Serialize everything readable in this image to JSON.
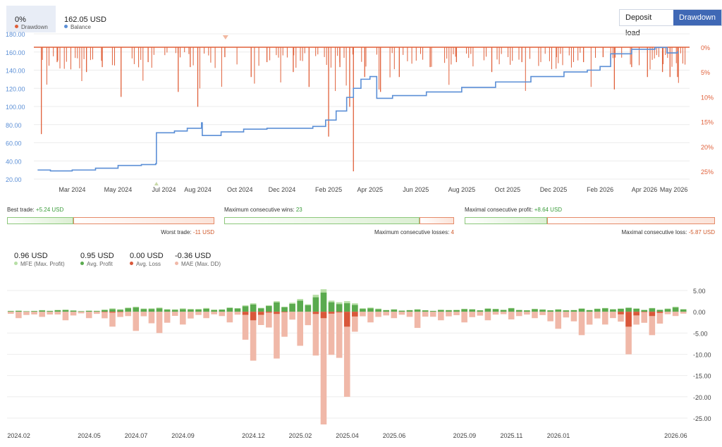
{
  "legend": {
    "drawdown_value": "0%",
    "drawdown_label": "Drawdown",
    "balance_value": "162.05 USD",
    "balance_label": "Balance",
    "colors": {
      "drawdown": "#e0603a",
      "balance": "#5b8fd6"
    }
  },
  "toggle": {
    "deposit_load": "Deposit load",
    "drawdown": "Drawdown",
    "active": "drawdown"
  },
  "stats": {
    "best_trade_label": "Best trade:",
    "best_trade_value": "+5.24 USD",
    "worst_trade_label": "Worst trade:",
    "worst_trade_value": "-11 USD",
    "max_cons_wins_label": "Maximum consecutive wins:",
    "max_cons_wins_value": "23",
    "max_cons_losses_label": "Maximum consecutive losses:",
    "max_cons_losses_value": "4",
    "max_cons_profit_label": "Maximal consecutive profit:",
    "max_cons_profit_value": "+8.64 USD",
    "max_cons_loss_label": "Maximal consecutive loss:",
    "max_cons_loss_value": "-5.87 USD",
    "bar_fractions": [
      0.32,
      0.85,
      0.33
    ]
  },
  "legend2": {
    "mfe_value": "0.96 USD",
    "mfe_label": "MFE (Max. Profit)",
    "avg_profit_value": "0.95 USD",
    "avg_profit_label": "Avg. Profit",
    "avg_loss_value": "0.00 USD",
    "avg_loss_label": "Avg. Loss",
    "mae_value": "-0.36 USD",
    "mae_label": "MAE (Max. DD)",
    "colors": {
      "mfe": "#b7dfa6",
      "profit": "#5aaa4e",
      "loss": "#d9573a",
      "mae": "#f0b8a8"
    }
  },
  "chart_data": [
    {
      "type": "line",
      "x_tick_labels": [
        "Mar 2024",
        "May 2024",
        "Jul 2024",
        "Aug 2024",
        "Oct 2024",
        "Dec 2024",
        "Feb 2025",
        "Apr 2025",
        "Jun 2025",
        "Aug 2025",
        "Oct 2025",
        "Dec 2025",
        "Feb 2026",
        "Apr 2026",
        "May 2026"
      ],
      "y_left_ticks": [
        "180.00",
        "160.00",
        "140.00",
        "120.00",
        "100.00",
        "80.00",
        "60.00",
        "40.00",
        "20.00"
      ],
      "y_left_range": [
        20,
        180
      ],
      "y_right_ticks": [
        "0%",
        "5%",
        "10%",
        "15%",
        "20%",
        "25%"
      ],
      "y_right_range": [
        0,
        27
      ],
      "series": [
        {
          "name": "Balance",
          "x": [
            "2024-01-15",
            "2024-02-01",
            "2024-03-01",
            "2024-04-01",
            "2024-05-01",
            "2024-06-01",
            "2024-06-20",
            "2024-06-21",
            "2024-07-15",
            "2024-08-01",
            "2024-08-20",
            "2024-08-21",
            "2024-09-15",
            "2024-10-15",
            "2024-11-15",
            "2024-12-15",
            "2025-01-15",
            "2025-02-01",
            "2025-02-15",
            "2025-03-01",
            "2025-03-10",
            "2025-03-20",
            "2025-04-01",
            "2025-04-10",
            "2025-05-01",
            "2025-06-15",
            "2025-08-01",
            "2025-09-15",
            "2025-11-01",
            "2025-12-15",
            "2026-01-15",
            "2026-02-01",
            "2026-02-15",
            "2026-03-15",
            "2026-04-15",
            "2026-05-01",
            "2026-05-15"
          ],
          "y": [
            30,
            29,
            30,
            32,
            35,
            36,
            37,
            71,
            73,
            76,
            82,
            68,
            72,
            75,
            76,
            76,
            78,
            85,
            95,
            110,
            120,
            130,
            133,
            109,
            112,
            116,
            121,
            127,
            133,
            138,
            140,
            144,
            158,
            163,
            165,
            159,
            161
          ]
        },
        {
          "name": "Drawdown",
          "unit": "%",
          "x": [
            "2024-01-20",
            "2024-02-10",
            "2024-03-20",
            "2024-04-10",
            "2024-05-05",
            "2024-06-10",
            "2024-07-20",
            "2024-08-05",
            "2024-08-15",
            "2024-09-20",
            "2024-10-25",
            "2024-11-15",
            "2024-12-20",
            "2025-01-10",
            "2025-02-05",
            "2025-02-20",
            "2025-03-05",
            "2025-03-10",
            "2025-03-25",
            "2025-04-15",
            "2025-05-10",
            "2025-06-20",
            "2025-07-25",
            "2025-09-10",
            "2025-10-20",
            "2025-12-05",
            "2026-01-10",
            "2026-02-05",
            "2026-02-20",
            "2026-03-15",
            "2026-04-05",
            "2026-04-25",
            "2026-05-05",
            "2026-05-15"
          ],
          "y": [
            17.5,
            3,
            5,
            4,
            10,
            3,
            9,
            4,
            12,
            2,
            6,
            3,
            5,
            8,
            18,
            4,
            12,
            25,
            6,
            9,
            6,
            4,
            3,
            5,
            3,
            2,
            3,
            2,
            8.5,
            4,
            6,
            5,
            6,
            6
          ]
        }
      ],
      "legend": "top-left",
      "grid": true
    },
    {
      "type": "bar",
      "x_tick_labels": [
        "2024.02",
        "2024.05",
        "2024.07",
        "2024.09",
        "2024.12",
        "2025.02",
        "2025.04",
        "2025.06",
        "2025.09",
        "2025.11",
        "2026.01",
        "2026.06"
      ],
      "y_ticks": [
        "5.00",
        "0.00",
        "-5.00",
        "-10.00",
        "-15.00",
        "-20.00",
        "-25.00"
      ],
      "y_range": [
        -27,
        6.5
      ],
      "categories": [
        "2024.02",
        "2024.03",
        "2024.04",
        "2024.05",
        "2024.06",
        "2024.07",
        "2024.08",
        "2024.09",
        "2024.10",
        "2024.11",
        "2024.12",
        "2025.01",
        "2025.02",
        "2025.03",
        "2025.04",
        "2025.05",
        "2025.06",
        "2025.07",
        "2025.08",
        "2025.09",
        "2025.10",
        "2025.11",
        "2025.12",
        "2026.01",
        "2026.02",
        "2026.03",
        "2026.04",
        "2026.05",
        "2026.06"
      ],
      "series": [
        {
          "name": "MFE (Max. Profit)",
          "values": [
            0.3,
            0.4,
            0.5,
            0.3,
            0.8,
            1.2,
            1.0,
            0.8,
            0.9,
            1.0,
            2.0,
            2.5,
            3.0,
            5.3,
            2.5,
            1.0,
            0.6,
            0.6,
            0.5,
            0.7,
            0.8,
            0.9,
            0.7,
            0.6,
            0.8,
            0.9,
            1.0,
            0.9,
            1.2
          ]
        },
        {
          "name": "Avg. Profit",
          "values": [
            0.2,
            0.3,
            0.4,
            0.2,
            0.6,
            1.0,
            0.8,
            0.6,
            0.7,
            0.9,
            1.7,
            2.2,
            2.6,
            4.5,
            2.0,
            0.8,
            0.5,
            0.5,
            0.4,
            0.6,
            0.7,
            0.8,
            0.6,
            0.5,
            0.7,
            0.8,
            0.9,
            0.8,
            1.0
          ]
        },
        {
          "name": "Avg. Loss",
          "values": [
            0,
            0,
            0,
            0,
            -0.2,
            0,
            0,
            0,
            0,
            0,
            -2.0,
            -0.5,
            0,
            -1.5,
            -3.5,
            0,
            0,
            0,
            0,
            0,
            0,
            0,
            0,
            0,
            0,
            0,
            -3.5,
            -1.0,
            0
          ]
        },
        {
          "name": "MAE (Max. DD)",
          "values": [
            -1.5,
            -1.2,
            -2.0,
            -1.5,
            -3.5,
            -4.5,
            -5.0,
            -3.0,
            -1.5,
            -2.5,
            -11.5,
            -11.0,
            -8.0,
            -26.5,
            -20.0,
            -2.5,
            -1.5,
            -3.8,
            -2.0,
            -2.5,
            -2.0,
            -1.8,
            -1.5,
            -4.0,
            -5.5,
            -3.0,
            -10.0,
            -5.5,
            -1.0
          ]
        }
      ],
      "grid": true
    }
  ]
}
